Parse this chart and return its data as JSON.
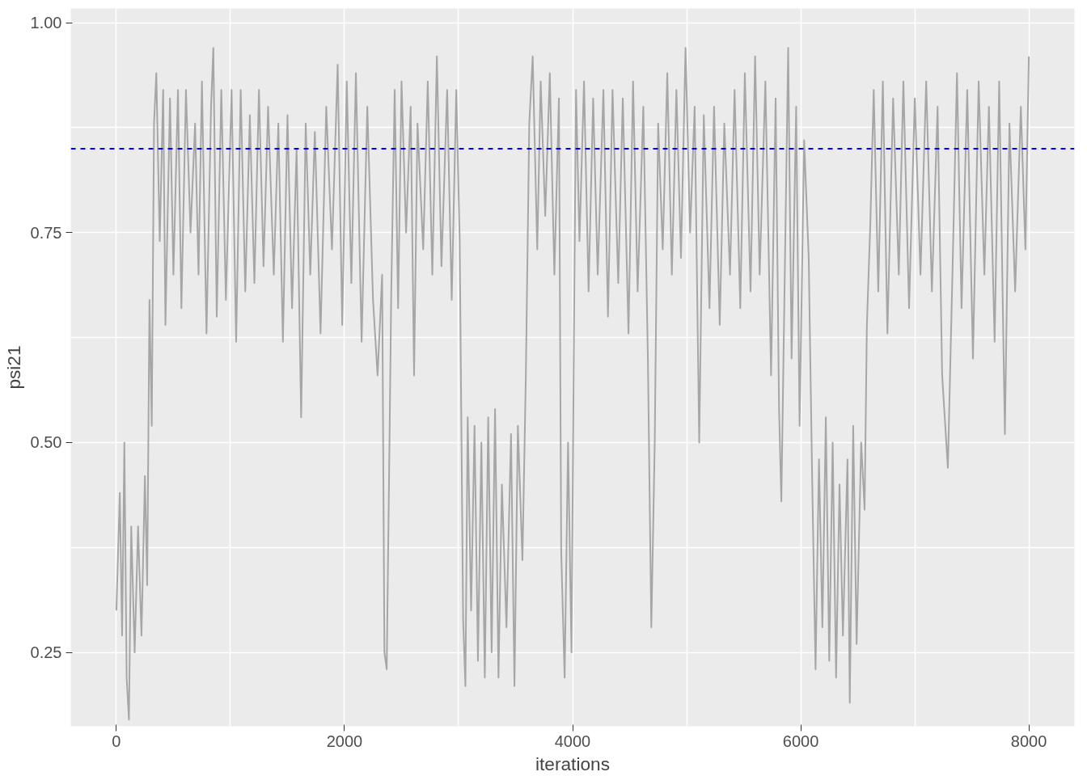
{
  "chart_data": {
    "type": "line",
    "xlabel": "iterations",
    "ylabel": "psi21",
    "xlim": [
      -400,
      8400
    ],
    "ylim": [
      0.162,
      1.017
    ],
    "xticks": [
      0,
      {
        "value": 1000,
        "label": null
      },
      2000,
      {
        "value": 3000,
        "label": null
      },
      4000,
      {
        "value": 5000,
        "label": null
      },
      6000,
      {
        "value": 7000,
        "label": null
      },
      8000
    ],
    "yticks": [
      {
        "value": 0.25,
        "label": "0.25"
      },
      {
        "value": 0.375,
        "label": null
      },
      {
        "value": 0.5,
        "label": "0.50"
      },
      {
        "value": 0.625,
        "label": null
      },
      {
        "value": 0.75,
        "label": "0.75"
      },
      {
        "value": 0.875,
        "label": null
      },
      {
        "value": 1.0,
        "label": "1.00"
      }
    ],
    "grid": true,
    "marker": "none",
    "line_style": "solid",
    "ref_lines": [
      {
        "axis": "y",
        "value": 0.85,
        "color": "#0000ff",
        "line_style": "dashed"
      }
    ],
    "series": [
      {
        "color": "#a6a6a6",
        "x": [
          0,
          30,
          50,
          70,
          90,
          110,
          130,
          160,
          190,
          220,
          250,
          270,
          290,
          310,
          330,
          350,
          380,
          410,
          430,
          470,
          500,
          540,
          570,
          610,
          650,
          690,
          720,
          750,
          790,
          830,
          850,
          880,
          920,
          960,
          1010,
          1050,
          1090,
          1130,
          1170,
          1210,
          1250,
          1290,
          1330,
          1380,
          1420,
          1460,
          1500,
          1540,
          1580,
          1620,
          1660,
          1700,
          1740,
          1790,
          1840,
          1890,
          1940,
          1980,
          2020,
          2060,
          2100,
          2150,
          2200,
          2250,
          2290,
          2330,
          2350,
          2370,
          2390,
          2410,
          2440,
          2470,
          2500,
          2540,
          2580,
          2610,
          2640,
          2690,
          2730,
          2770,
          2810,
          2850,
          2900,
          2940,
          2980,
          3010,
          3040,
          3060,
          3080,
          3110,
          3140,
          3170,
          3200,
          3230,
          3260,
          3290,
          3320,
          3350,
          3380,
          3420,
          3460,
          3490,
          3520,
          3560,
          3590,
          3620,
          3650,
          3690,
          3720,
          3760,
          3800,
          3840,
          3880,
          3900,
          3930,
          3960,
          3990,
          4010,
          4030,
          4060,
          4100,
          4140,
          4180,
          4220,
          4270,
          4310,
          4350,
          4400,
          4440,
          4490,
          4530,
          4570,
          4620,
          4660,
          4690,
          4720,
          4750,
          4790,
          4830,
          4870,
          4910,
          4950,
          4990,
          5030,
          5070,
          5110,
          5150,
          5200,
          5240,
          5290,
          5330,
          5380,
          5420,
          5470,
          5510,
          5560,
          5600,
          5640,
          5690,
          5740,
          5780,
          5810,
          5830,
          5860,
          5890,
          5920,
          5960,
          5990,
          6030,
          6070,
          6100,
          6130,
          6160,
          6190,
          6220,
          6250,
          6280,
          6310,
          6340,
          6370,
          6410,
          6430,
          6460,
          6490,
          6530,
          6560,
          6580,
          6610,
          6640,
          6680,
          6720,
          6760,
          6810,
          6860,
          6900,
          6950,
          7000,
          7050,
          7100,
          7150,
          7200,
          7240,
          7290,
          7330,
          7370,
          7410,
          7460,
          7510,
          7560,
          7610,
          7650,
          7700,
          7740,
          7790,
          7830,
          7880,
          7930,
          7970,
          8000
        ],
        "values": [
          0.3,
          0.44,
          0.27,
          0.5,
          0.22,
          0.17,
          0.4,
          0.25,
          0.4,
          0.27,
          0.46,
          0.33,
          0.67,
          0.52,
          0.88,
          0.94,
          0.74,
          0.92,
          0.64,
          0.91,
          0.7,
          0.92,
          0.66,
          0.92,
          0.75,
          0.88,
          0.7,
          0.93,
          0.63,
          0.9,
          0.97,
          0.65,
          0.92,
          0.67,
          0.92,
          0.62,
          0.92,
          0.68,
          0.89,
          0.69,
          0.92,
          0.71,
          0.9,
          0.7,
          0.88,
          0.62,
          0.89,
          0.66,
          0.85,
          0.53,
          0.88,
          0.7,
          0.87,
          0.63,
          0.9,
          0.73,
          0.95,
          0.64,
          0.93,
          0.69,
          0.94,
          0.62,
          0.9,
          0.67,
          0.58,
          0.7,
          0.25,
          0.23,
          0.45,
          0.68,
          0.92,
          0.66,
          0.93,
          0.75,
          0.9,
          0.58,
          0.88,
          0.73,
          0.93,
          0.7,
          0.96,
          0.71,
          0.92,
          0.67,
          0.92,
          0.74,
          0.29,
          0.21,
          0.53,
          0.3,
          0.52,
          0.24,
          0.5,
          0.22,
          0.53,
          0.25,
          0.54,
          0.22,
          0.45,
          0.28,
          0.51,
          0.21,
          0.52,
          0.36,
          0.58,
          0.88,
          0.96,
          0.73,
          0.93,
          0.77,
          0.94,
          0.7,
          0.91,
          0.37,
          0.22,
          0.5,
          0.25,
          0.6,
          0.92,
          0.74,
          0.93,
          0.68,
          0.91,
          0.7,
          0.92,
          0.65,
          0.92,
          0.69,
          0.91,
          0.63,
          0.93,
          0.68,
          0.9,
          0.6,
          0.28,
          0.5,
          0.88,
          0.73,
          0.94,
          0.7,
          0.92,
          0.72,
          0.97,
          0.75,
          0.9,
          0.5,
          0.89,
          0.66,
          0.9,
          0.64,
          0.88,
          0.7,
          0.92,
          0.66,
          0.94,
          0.68,
          0.96,
          0.7,
          0.93,
          0.58,
          0.91,
          0.54,
          0.43,
          0.7,
          0.97,
          0.6,
          0.9,
          0.52,
          0.86,
          0.72,
          0.46,
          0.23,
          0.48,
          0.28,
          0.53,
          0.24,
          0.5,
          0.22,
          0.45,
          0.27,
          0.48,
          0.19,
          0.52,
          0.26,
          0.5,
          0.42,
          0.64,
          0.76,
          0.92,
          0.68,
          0.93,
          0.63,
          0.91,
          0.7,
          0.93,
          0.66,
          0.91,
          0.7,
          0.93,
          0.68,
          0.9,
          0.58,
          0.47,
          0.7,
          0.94,
          0.66,
          0.92,
          0.6,
          0.93,
          0.7,
          0.9,
          0.62,
          0.93,
          0.51,
          0.88,
          0.68,
          0.9,
          0.73,
          0.96
        ]
      }
    ]
  }
}
